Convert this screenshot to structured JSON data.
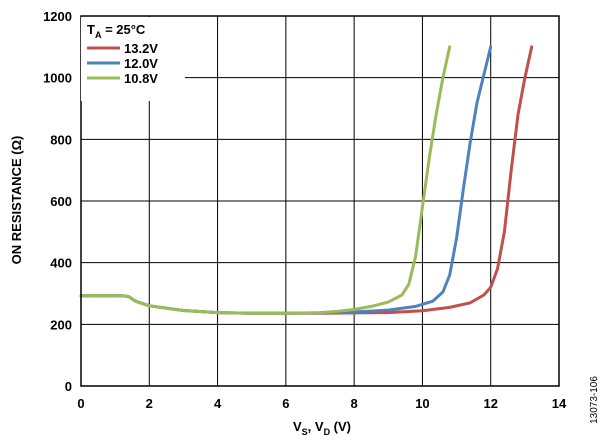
{
  "chart_data": {
    "type": "line",
    "title": "",
    "xlabel_main": "V",
    "xlabel_sub1": "S",
    "xlabel_sep": ", V",
    "xlabel_sub2": "D",
    "xlabel_unit": " (V)",
    "ylabel": "ON RESISTANCE (Ω)",
    "xlim": [
      0,
      14
    ],
    "ylim": [
      0,
      1200
    ],
    "xticks": [
      0,
      2,
      4,
      6,
      8,
      10,
      12,
      14
    ],
    "yticks": [
      0,
      200,
      400,
      600,
      800,
      1000,
      1200
    ],
    "grid": true,
    "legend_placement": "top-left",
    "legend_title_main": "T",
    "legend_title_sub": "A",
    "legend_title_rest": " = 25°C",
    "figure_id": "13073-106",
    "series": [
      {
        "name": "13.2V",
        "color": "#c0504d",
        "points": [
          [
            0,
            293
          ],
          [
            1.2,
            293
          ],
          [
            1.4,
            290
          ],
          [
            1.6,
            275
          ],
          [
            2,
            260
          ],
          [
            3,
            245
          ],
          [
            4,
            238
          ],
          [
            5,
            236
          ],
          [
            6,
            236
          ],
          [
            7,
            236
          ],
          [
            8,
            237
          ],
          [
            9,
            238
          ],
          [
            10,
            244
          ],
          [
            10.8,
            255
          ],
          [
            11.4,
            270
          ],
          [
            11.8,
            295
          ],
          [
            12.0,
            320
          ],
          [
            12.2,
            380
          ],
          [
            12.4,
            500
          ],
          [
            12.6,
            700
          ],
          [
            12.8,
            880
          ],
          [
            13.0,
            1000
          ],
          [
            13.2,
            1100
          ]
        ]
      },
      {
        "name": "12.0V",
        "color": "#4f81bd",
        "points": [
          [
            0,
            293
          ],
          [
            1.2,
            293
          ],
          [
            1.4,
            290
          ],
          [
            1.6,
            275
          ],
          [
            2,
            260
          ],
          [
            3,
            245
          ],
          [
            4,
            238
          ],
          [
            5,
            236
          ],
          [
            6,
            236
          ],
          [
            7,
            237
          ],
          [
            8,
            240
          ],
          [
            9,
            246
          ],
          [
            9.8,
            258
          ],
          [
            10.3,
            275
          ],
          [
            10.6,
            305
          ],
          [
            10.8,
            360
          ],
          [
            11.0,
            480
          ],
          [
            11.2,
            640
          ],
          [
            11.4,
            790
          ],
          [
            11.6,
            920
          ],
          [
            11.8,
            1010
          ],
          [
            12.0,
            1100
          ]
        ]
      },
      {
        "name": "10.8V",
        "color": "#9bbb59",
        "points": [
          [
            0,
            293
          ],
          [
            1.2,
            293
          ],
          [
            1.4,
            290
          ],
          [
            1.6,
            275
          ],
          [
            2,
            260
          ],
          [
            3,
            245
          ],
          [
            4,
            238
          ],
          [
            5,
            236
          ],
          [
            6,
            236
          ],
          [
            7,
            238
          ],
          [
            7.5,
            242
          ],
          [
            8,
            248
          ],
          [
            8.5,
            258
          ],
          [
            9.0,
            272
          ],
          [
            9.4,
            295
          ],
          [
            9.6,
            330
          ],
          [
            9.8,
            420
          ],
          [
            10.0,
            580
          ],
          [
            10.2,
            740
          ],
          [
            10.4,
            880
          ],
          [
            10.6,
            1000
          ],
          [
            10.8,
            1100
          ]
        ]
      }
    ]
  }
}
